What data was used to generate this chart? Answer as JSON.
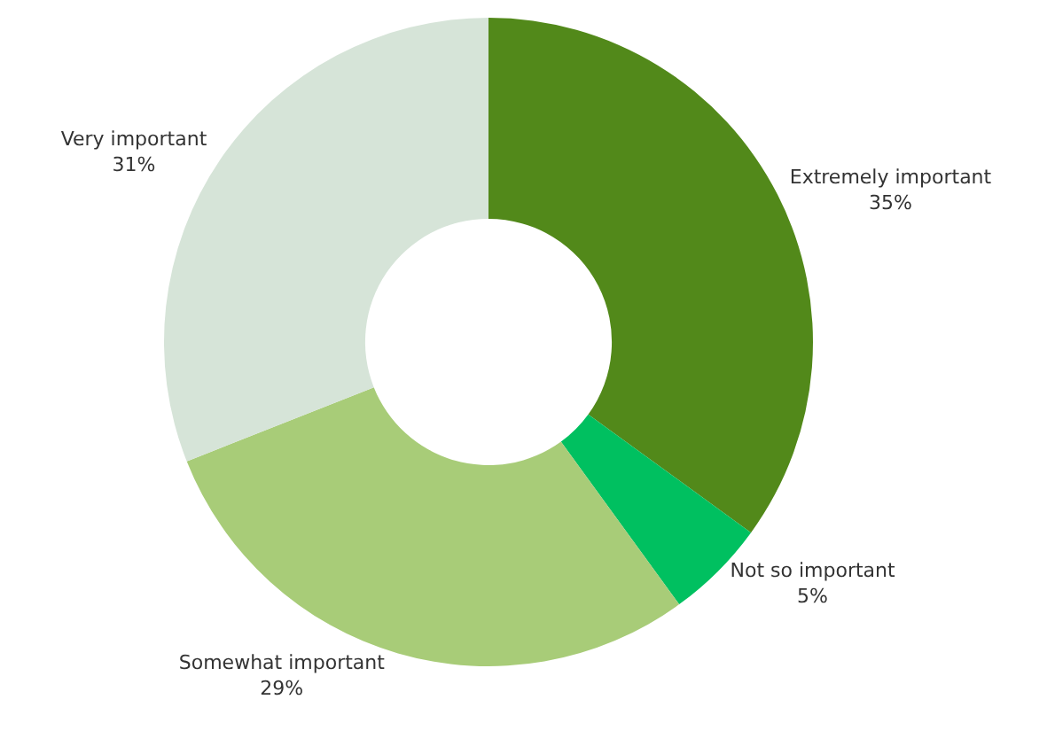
{
  "chart_data": {
    "type": "donut",
    "categories": [
      "Extremely important",
      "Not so important",
      "Somewhat important",
      "Very important"
    ],
    "values": [
      35,
      5,
      29,
      31
    ],
    "value_labels": [
      "35%",
      "5%",
      "29%",
      "31%"
    ],
    "colors": [
      "#52891a",
      "#00c060",
      "#a8cc78",
      "#d6e4d8"
    ],
    "legend": false
  }
}
